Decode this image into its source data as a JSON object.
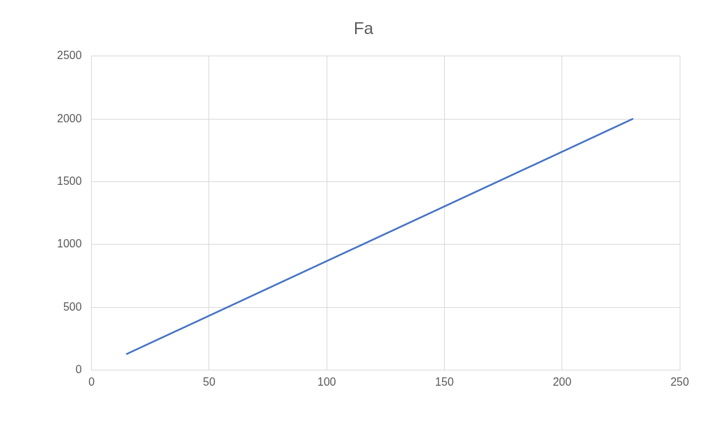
{
  "chart_data": {
    "type": "line",
    "title": "Fa",
    "x": [
      15,
      230
    ],
    "series": [
      {
        "color": "#4472c4",
        "values": [
          130,
          2000
        ]
      }
    ],
    "xlim": [
      0,
      250
    ],
    "xticks": [
      0,
      50,
      100,
      150,
      200,
      250
    ],
    "ylim": [
      0,
      2500
    ],
    "yticks": [
      0,
      500,
      1000,
      1500,
      2000,
      2500
    ],
    "grid": true,
    "legend": false,
    "marker": "none",
    "line_style": "solid"
  }
}
